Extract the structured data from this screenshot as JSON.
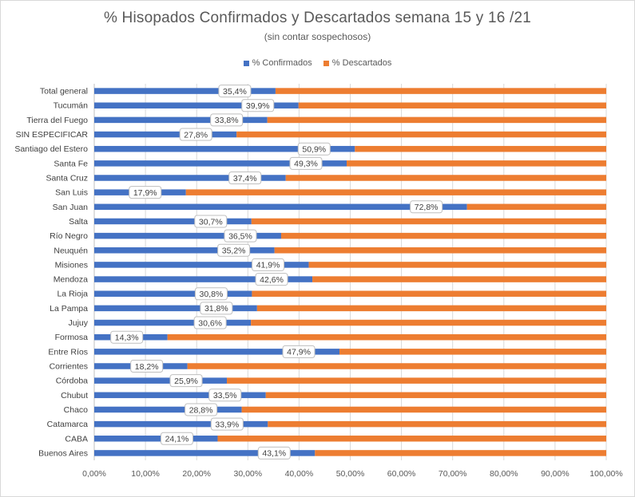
{
  "chart_data": {
    "type": "bar",
    "orientation": "horizontal",
    "stacked": true,
    "title": "% Hisopados Confirmados y Descartados semana 15 y 16 /21",
    "subtitle": "(sin contar sospechosos)",
    "legend_position": "top",
    "grid": true,
    "xlim": [
      0,
      100
    ],
    "x_ticks": [
      "0,00%",
      "10,00%",
      "20,00%",
      "30,00%",
      "40,00%",
      "50,00%",
      "60,00%",
      "70,00%",
      "80,00%",
      "90,00%",
      "100,00%"
    ],
    "categories": [
      "Total general",
      "Tucumán",
      "Tierra del Fuego",
      "SIN ESPECIFICAR",
      "Santiago del Estero",
      "Santa Fe",
      "Santa Cruz",
      "San Luis",
      "San Juan",
      "Salta",
      "Río Negro",
      "Neuquén",
      "Misiones",
      "Mendoza",
      "La Rioja",
      "La Pampa",
      "Jujuy",
      "Formosa",
      "Entre Ríos",
      "Corrientes",
      "Córdoba",
      "Chubut",
      "Chaco",
      "Catamarca",
      "CABA",
      "Buenos Aires"
    ],
    "series": [
      {
        "name": "% Confirmados",
        "color": "#4472c4",
        "values": [
          35.4,
          39.9,
          33.8,
          27.8,
          50.9,
          49.3,
          37.4,
          17.9,
          72.8,
          30.7,
          36.5,
          35.2,
          41.9,
          42.6,
          30.8,
          31.8,
          30.6,
          14.3,
          47.9,
          18.2,
          25.9,
          33.5,
          28.8,
          33.9,
          24.1,
          43.1
        ],
        "labels": [
          "35,4%",
          "39,9%",
          "33,8%",
          "27,8%",
          "50,9%",
          "49,3%",
          "37,4%",
          "17,9%",
          "72,8%",
          "30,7%",
          "36,5%",
          "35,2%",
          "41,9%",
          "42,6%",
          "30,8%",
          "31,8%",
          "30,6%",
          "14,3%",
          "47,9%",
          "18,2%",
          "25,9%",
          "33,5%",
          "28,8%",
          "33,9%",
          "24,1%",
          "43,1%"
        ]
      },
      {
        "name": "% Descartados",
        "color": "#ed7d31",
        "values": [
          64.6,
          60.1,
          66.2,
          72.2,
          49.1,
          50.7,
          62.6,
          82.1,
          27.2,
          69.3,
          63.5,
          64.8,
          58.1,
          57.4,
          69.2,
          68.2,
          69.4,
          85.7,
          52.1,
          81.8,
          74.1,
          66.5,
          71.2,
          66.1,
          75.9,
          56.9
        ]
      }
    ]
  }
}
